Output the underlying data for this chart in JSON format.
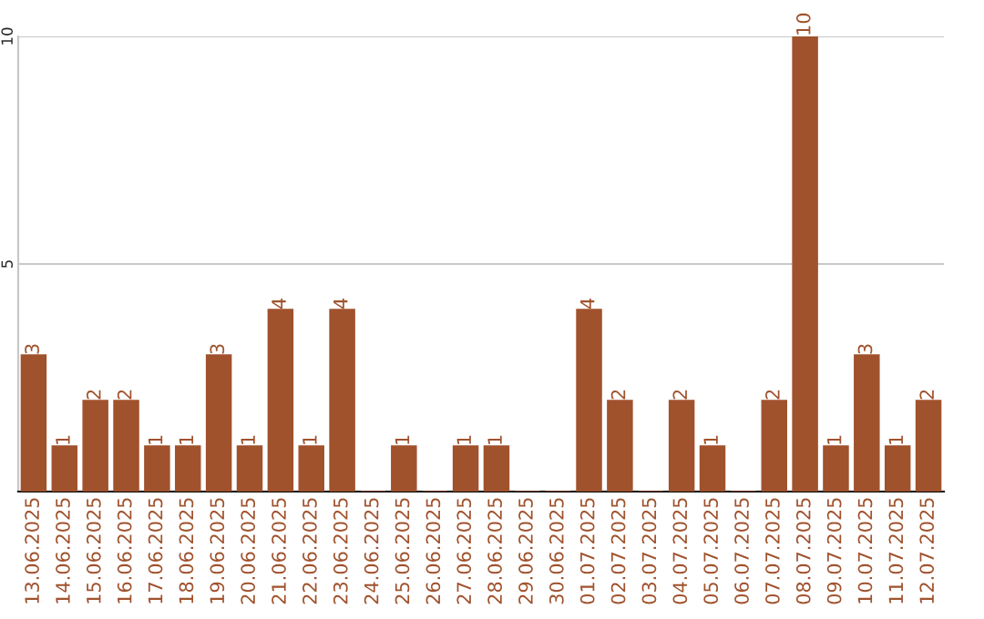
{
  "chart_data": {
    "type": "bar",
    "categories": [
      "13.06.2025",
      "14.06.2025",
      "15.06.2025",
      "16.06.2025",
      "17.06.2025",
      "18.06.2025",
      "19.06.2025",
      "20.06.2025",
      "21.06.2025",
      "22.06.2025",
      "23.06.2025",
      "24.06.2025",
      "25.06.2025",
      "26.06.2025",
      "27.06.2025",
      "28.06.2025",
      "29.06.2025",
      "30.06.2025",
      "01.07.2025",
      "02.07.2025",
      "03.07.2025",
      "04.07.2025",
      "05.07.2025",
      "06.07.2025",
      "07.07.2025",
      "08.07.2025",
      "09.07.2025",
      "10.07.2025",
      "11.07.2025",
      "12.07.2025"
    ],
    "values": [
      3,
      1,
      2,
      2,
      1,
      1,
      3,
      1,
      4,
      1,
      4,
      0,
      1,
      0,
      1,
      1,
      0,
      0,
      4,
      2,
      0,
      2,
      1,
      0,
      2,
      10,
      1,
      3,
      1,
      2
    ],
    "value_labels": [
      "3",
      "1",
      "2",
      "2",
      "1",
      "1",
      "3",
      "1",
      "4",
      "1",
      "4",
      null,
      "1",
      null,
      "1",
      "1",
      null,
      null,
      "4",
      "2",
      null,
      "2",
      "1",
      null,
      "2",
      "10",
      "1",
      "3",
      "1",
      "2"
    ],
    "color": "#a0522d",
    "ylim": [
      0,
      10
    ],
    "yticks": [
      5,
      10
    ],
    "grid": "y"
  }
}
